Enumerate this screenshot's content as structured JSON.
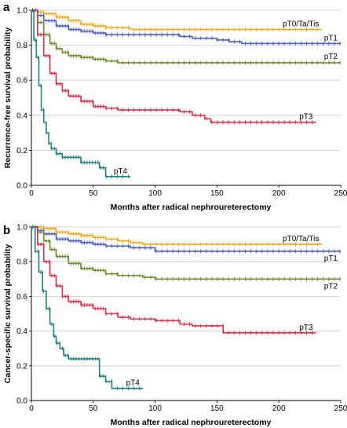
{
  "chart_data": [
    {
      "panel_label": "a",
      "type": "line",
      "xlabel": "Months after radical nephroureterectomy",
      "ylabel": "Recurrence-free survival probability",
      "xlim": [
        0,
        250
      ],
      "ylim": [
        0,
        1.0
      ],
      "xticks": [
        "0",
        "50",
        "100",
        "150",
        "200",
        "250"
      ],
      "yticks": [
        "0.0",
        "0.2",
        "0.4",
        "0.6",
        "0.8",
        "1.0"
      ],
      "grid": "horizontal",
      "series": [
        {
          "name": "pT0/Ta/Tis",
          "color": "#F5A623",
          "x": [
            0,
            5,
            10,
            20,
            30,
            40,
            50,
            60,
            70,
            80,
            100,
            150,
            200,
            235
          ],
          "y": [
            1.0,
            0.99,
            0.98,
            0.96,
            0.94,
            0.92,
            0.91,
            0.9,
            0.9,
            0.89,
            0.89,
            0.89,
            0.89,
            0.89
          ]
        },
        {
          "name": "pT1",
          "color": "#4A5FC1",
          "x": [
            0,
            5,
            10,
            20,
            30,
            40,
            50,
            60,
            80,
            100,
            110,
            120,
            130,
            150,
            160,
            170,
            200,
            250
          ],
          "y": [
            1.0,
            0.97,
            0.94,
            0.91,
            0.89,
            0.88,
            0.87,
            0.86,
            0.86,
            0.86,
            0.86,
            0.85,
            0.84,
            0.83,
            0.82,
            0.81,
            0.81,
            0.81
          ]
        },
        {
          "name": "pT2",
          "color": "#6E8B2E",
          "x": [
            0,
            5,
            10,
            15,
            20,
            25,
            30,
            40,
            50,
            60,
            70,
            80,
            100,
            150,
            200,
            250
          ],
          "y": [
            1.0,
            0.93,
            0.86,
            0.81,
            0.78,
            0.76,
            0.74,
            0.73,
            0.72,
            0.71,
            0.7,
            0.7,
            0.7,
            0.7,
            0.7,
            0.7
          ]
        },
        {
          "name": "pT3",
          "color": "#D6304A",
          "x": [
            0,
            5,
            10,
            15,
            20,
            25,
            30,
            40,
            50,
            60,
            70,
            80,
            100,
            120,
            130,
            140,
            145,
            160,
            200,
            230
          ],
          "y": [
            1.0,
            0.86,
            0.74,
            0.64,
            0.58,
            0.54,
            0.51,
            0.48,
            0.45,
            0.44,
            0.43,
            0.43,
            0.43,
            0.42,
            0.4,
            0.38,
            0.36,
            0.36,
            0.36,
            0.36
          ]
        },
        {
          "name": "pT4",
          "color": "#1E8080",
          "x": [
            0,
            2,
            4,
            6,
            8,
            10,
            12,
            14,
            16,
            18,
            20,
            25,
            30,
            40,
            50,
            55,
            60,
            70,
            80
          ],
          "y": [
            1.0,
            0.83,
            0.73,
            0.57,
            0.43,
            0.36,
            0.3,
            0.24,
            0.21,
            0.21,
            0.18,
            0.16,
            0.16,
            0.13,
            0.13,
            0.1,
            0.05,
            0.05,
            0.05
          ]
        }
      ]
    },
    {
      "panel_label": "b",
      "type": "line",
      "xlabel": "Months after radical nephroureterectomy",
      "ylabel": "Cancer-specific survival probability",
      "xlim": [
        0,
        250
      ],
      "ylim": [
        0,
        1.0
      ],
      "xticks": [
        "0",
        "50",
        "100",
        "150",
        "200",
        "250"
      ],
      "yticks": [
        "0.0",
        "0.2",
        "0.4",
        "0.6",
        "0.8",
        "1.0"
      ],
      "grid": "horizontal",
      "series": [
        {
          "name": "pT0/Ta/Tis",
          "color": "#F5A623",
          "x": [
            0,
            10,
            20,
            30,
            40,
            50,
            60,
            70,
            80,
            90,
            100,
            150,
            200,
            235
          ],
          "y": [
            1.0,
            0.99,
            0.97,
            0.96,
            0.95,
            0.94,
            0.93,
            0.92,
            0.91,
            0.9,
            0.9,
            0.9,
            0.9,
            0.9
          ]
        },
        {
          "name": "pT1",
          "color": "#4A5FC1",
          "x": [
            0,
            5,
            10,
            20,
            30,
            40,
            50,
            60,
            70,
            80,
            90,
            100,
            120,
            150,
            200,
            250
          ],
          "y": [
            1.0,
            0.98,
            0.96,
            0.93,
            0.92,
            0.91,
            0.9,
            0.89,
            0.89,
            0.88,
            0.88,
            0.86,
            0.86,
            0.86,
            0.86,
            0.86
          ]
        },
        {
          "name": "pT2",
          "color": "#6E8B2E",
          "x": [
            0,
            5,
            10,
            15,
            20,
            30,
            40,
            50,
            60,
            70,
            80,
            90,
            100,
            150,
            200,
            250
          ],
          "y": [
            1.0,
            0.97,
            0.92,
            0.87,
            0.83,
            0.79,
            0.76,
            0.75,
            0.73,
            0.72,
            0.72,
            0.71,
            0.7,
            0.7,
            0.7,
            0.7
          ]
        },
        {
          "name": "pT3",
          "color": "#D6304A",
          "x": [
            0,
            5,
            10,
            15,
            20,
            25,
            30,
            40,
            50,
            60,
            70,
            80,
            100,
            120,
            130,
            150,
            155,
            200,
            230
          ],
          "y": [
            1.0,
            0.9,
            0.8,
            0.72,
            0.66,
            0.6,
            0.57,
            0.55,
            0.53,
            0.5,
            0.48,
            0.47,
            0.46,
            0.44,
            0.43,
            0.43,
            0.39,
            0.39,
            0.39
          ]
        },
        {
          "name": "pT4",
          "color": "#1E8080",
          "x": [
            0,
            3,
            6,
            9,
            12,
            15,
            18,
            20,
            23,
            26,
            30,
            40,
            50,
            55,
            60,
            65,
            70,
            80,
            90
          ],
          "y": [
            1.0,
            0.86,
            0.74,
            0.63,
            0.53,
            0.44,
            0.37,
            0.33,
            0.3,
            0.26,
            0.24,
            0.24,
            0.24,
            0.14,
            0.11,
            0.07,
            0.07,
            0.07,
            0.07
          ]
        }
      ]
    }
  ]
}
